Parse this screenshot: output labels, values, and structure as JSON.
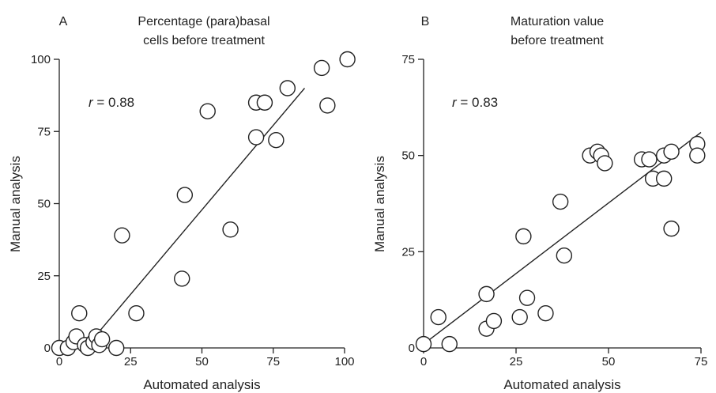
{
  "chart_data": [
    {
      "type": "scatter",
      "panel_label": "A",
      "title_lines": [
        "Percentage (para)basal",
        "cells before treatment"
      ],
      "xlabel": "Automated analysis",
      "ylabel": "Manual analysis",
      "xlim": [
        0,
        100
      ],
      "ylim": [
        0,
        100
      ],
      "xticks": [
        0,
        25,
        50,
        75,
        100
      ],
      "yticks": [
        0,
        25,
        50,
        75,
        100
      ],
      "annotation": {
        "r_symbol": "r",
        "rest": " = 0.88"
      },
      "fit_line": {
        "x": [
          10,
          86
        ],
        "y": [
          1,
          90
        ]
      },
      "points": [
        {
          "x": 0,
          "y": 0
        },
        {
          "x": 3,
          "y": 0
        },
        {
          "x": 5,
          "y": 2
        },
        {
          "x": 6,
          "y": 4
        },
        {
          "x": 7,
          "y": 12
        },
        {
          "x": 9,
          "y": 1
        },
        {
          "x": 10,
          "y": 0
        },
        {
          "x": 12,
          "y": 2
        },
        {
          "x": 13,
          "y": 4
        },
        {
          "x": 14,
          "y": 1
        },
        {
          "x": 15,
          "y": 3
        },
        {
          "x": 20,
          "y": 0
        },
        {
          "x": 22,
          "y": 39
        },
        {
          "x": 27,
          "y": 12
        },
        {
          "x": 43,
          "y": 24
        },
        {
          "x": 44,
          "y": 53
        },
        {
          "x": 52,
          "y": 82
        },
        {
          "x": 60,
          "y": 41
        },
        {
          "x": 69,
          "y": 73
        },
        {
          "x": 69,
          "y": 85
        },
        {
          "x": 72,
          "y": 85
        },
        {
          "x": 76,
          "y": 72
        },
        {
          "x": 80,
          "y": 90
        },
        {
          "x": 92,
          "y": 97
        },
        {
          "x": 94,
          "y": 84
        },
        {
          "x": 101,
          "y": 100
        }
      ]
    },
    {
      "type": "scatter",
      "panel_label": "B",
      "title_lines": [
        "Maturation value",
        "before treatment"
      ],
      "xlabel": "Automated analysis",
      "ylabel": "Manual analysis",
      "xlim": [
        0,
        75
      ],
      "ylim": [
        0,
        75
      ],
      "xticks": [
        0,
        25,
        50,
        75
      ],
      "yticks": [
        0,
        25,
        50,
        75
      ],
      "annotation": {
        "r_symbol": "r",
        "rest": " = 0.83"
      },
      "fit_line": {
        "x": [
          0,
          75
        ],
        "y": [
          1,
          56
        ]
      },
      "points": [
        {
          "x": 0,
          "y": 1
        },
        {
          "x": 4,
          "y": 8
        },
        {
          "x": 7,
          "y": 1
        },
        {
          "x": 17,
          "y": 14
        },
        {
          "x": 17,
          "y": 5
        },
        {
          "x": 19,
          "y": 7
        },
        {
          "x": 26,
          "y": 8
        },
        {
          "x": 27,
          "y": 29
        },
        {
          "x": 28,
          "y": 13
        },
        {
          "x": 33,
          "y": 9
        },
        {
          "x": 37,
          "y": 38
        },
        {
          "x": 38,
          "y": 24
        },
        {
          "x": 45,
          "y": 50
        },
        {
          "x": 47,
          "y": 51
        },
        {
          "x": 48,
          "y": 50
        },
        {
          "x": 49,
          "y": 48
        },
        {
          "x": 59,
          "y": 49
        },
        {
          "x": 61,
          "y": 49
        },
        {
          "x": 62,
          "y": 44
        },
        {
          "x": 65,
          "y": 50
        },
        {
          "x": 65,
          "y": 44
        },
        {
          "x": 67,
          "y": 51
        },
        {
          "x": 67,
          "y": 31
        },
        {
          "x": 74,
          "y": 53
        },
        {
          "x": 74,
          "y": 50
        }
      ]
    }
  ]
}
